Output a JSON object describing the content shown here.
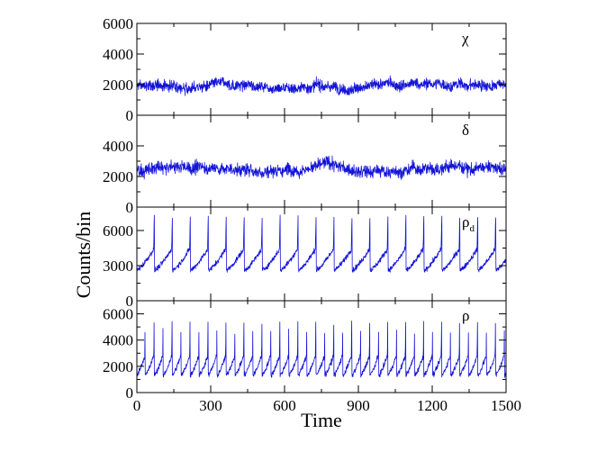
{
  "chart_data": {
    "type": "line",
    "xlabel": "Time",
    "ylabel": "Counts/bin",
    "xlim": [
      0,
      1500
    ],
    "x_ticks": [
      0,
      300,
      600,
      900,
      1200,
      1500
    ],
    "x_tick_labels": [
      "0",
      "300",
      "600",
      "900",
      "1200",
      "1500"
    ],
    "line_color": "#1414d8",
    "grid": false,
    "legend": "none",
    "panels": [
      {
        "id": "chi",
        "label": "χ",
        "label_sub": "",
        "ylim": [
          0,
          6000
        ],
        "y_ticks": [
          0,
          2000,
          4000,
          6000
        ],
        "y_tick_labels": [
          "0",
          "2000",
          "4000",
          "6000"
        ],
        "behavior": "stationary noisy signal",
        "mean": 1900,
        "noise_amplitude": 350,
        "series": [
          {
            "x": [
              0,
              300,
              600,
              900,
              1200,
              1500
            ],
            "y": [
              1900,
              1950,
              1900,
              1900,
              2000,
              1950
            ]
          }
        ]
      },
      {
        "id": "delta",
        "label": "δ",
        "label_sub": "",
        "ylim": [
          0,
          6000
        ],
        "y_ticks": [
          0,
          2000,
          4000
        ],
        "y_tick_labels": [
          "0",
          "2000",
          "4000"
        ],
        "behavior": "noisy signal with slow fluctuations",
        "mean": 2400,
        "noise_amplitude": 400,
        "series": [
          {
            "x": [
              0,
              100,
              300,
              500,
              780,
              900,
              1100,
              1300,
              1500
            ],
            "y": [
              2400,
              2500,
              2600,
              2350,
              2900,
              2200,
              2400,
              2700,
              2400
            ]
          }
        ]
      },
      {
        "id": "rho_d",
        "label": "ρ",
        "label_sub": "d",
        "ylim": [
          0,
          8000
        ],
        "y_ticks": [
          0,
          3000,
          6000
        ],
        "y_tick_labels": [
          "0",
          "3000",
          "6000"
        ],
        "behavior": "relaxation oscillation: slow rise then sharp spike",
        "period": 73,
        "phase": 72,
        "baseline_min": 2600,
        "pre_spike_level": 4400,
        "peak": 7400,
        "series": [
          {
            "x": [
              0,
              72,
              74,
              145,
              147,
              218,
              220
            ],
            "y": [
              3000,
              7400,
              2600,
              7400,
              2600,
              7400,
              2600
            ]
          }
        ]
      },
      {
        "id": "rho",
        "label": "ρ",
        "label_sub": "",
        "ylim": [
          0,
          7000
        ],
        "y_ticks": [
          0,
          2000,
          4000,
          6000
        ],
        "y_tick_labels": [
          "0",
          "2000",
          "4000",
          "6000"
        ],
        "behavior": "regular spiking oscillation",
        "period": 36.5,
        "phase": 34,
        "baseline_min": 1300,
        "pre_spike_level": 2800,
        "peak": 5600,
        "series": [
          {
            "x": [
              0,
              34,
              36,
              70,
              72,
              107,
              109
            ],
            "y": [
              1400,
              5600,
              1300,
              5600,
              1300,
              5600,
              1300
            ]
          }
        ]
      }
    ]
  }
}
